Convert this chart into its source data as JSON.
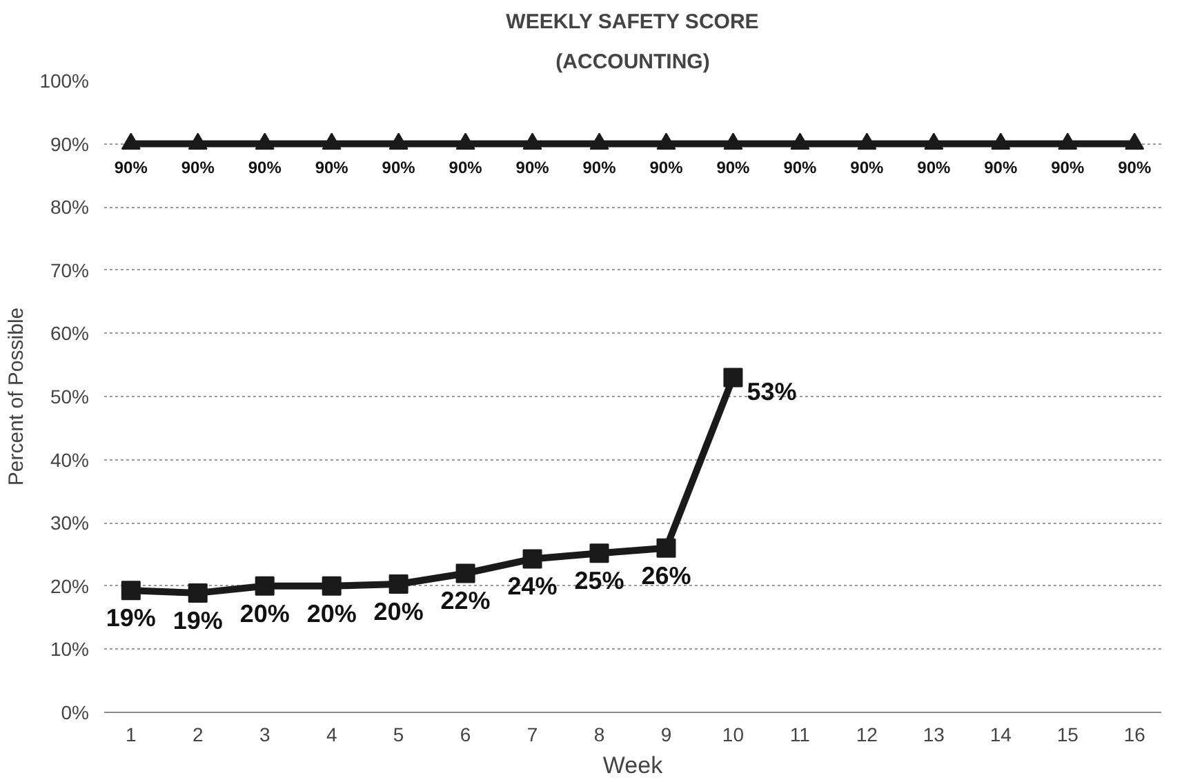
{
  "chart_data": {
    "type": "line",
    "title": "WEEKLY SAFETY SCORE",
    "subtitle": "(ACCOUNTING)",
    "xlabel": "Week",
    "ylabel": "Percent of Possible",
    "x": [
      1,
      2,
      3,
      4,
      5,
      6,
      7,
      8,
      9,
      10,
      11,
      12,
      13,
      14,
      15,
      16
    ],
    "series": [
      {
        "color": "#1a1a1a",
        "marker": "triangle",
        "values": [
          90,
          90,
          90,
          90,
          90,
          90,
          90,
          90,
          90,
          90,
          90,
          90,
          90,
          90,
          90,
          90
        ],
        "value_labels": [
          "90%",
          "90%",
          "90%",
          "90%",
          "90%",
          "90%",
          "90%",
          "90%",
          "90%",
          "90%",
          "90%",
          "90%",
          "90%",
          "90%",
          "90%",
          "90%"
        ]
      },
      {
        "color": "#1a1a1a",
        "marker": "square",
        "values": [
          19.3,
          18.9,
          20,
          20,
          20.3,
          22,
          24.3,
          25.2,
          26,
          53,
          null,
          null,
          null,
          null,
          null,
          null
        ],
        "value_labels": [
          "19%",
          "19%",
          "20%",
          "20%",
          "20%",
          "22%",
          "24%",
          "25%",
          "26%",
          "53%",
          null,
          null,
          null,
          null,
          null,
          null
        ]
      }
    ],
    "xlim": [
      0.6,
      16.4
    ],
    "xticks": [
      1,
      2,
      3,
      4,
      5,
      6,
      7,
      8,
      9,
      10,
      11,
      12,
      13,
      14,
      15,
      16
    ],
    "ylim": [
      0,
      100
    ],
    "yticks": [
      {
        "value": 0,
        "label": "0%"
      },
      {
        "value": 10,
        "label": "10%"
      },
      {
        "value": 20,
        "label": "20%"
      },
      {
        "value": 30,
        "label": "30%"
      },
      {
        "value": 40,
        "label": "40%"
      },
      {
        "value": 50,
        "label": "50%"
      },
      {
        "value": 60,
        "label": "60%"
      },
      {
        "value": 70,
        "label": "70%"
      },
      {
        "value": 80,
        "label": "80%"
      },
      {
        "value": 90,
        "label": "90%"
      },
      {
        "value": 100,
        "label": "100%"
      }
    ],
    "grid": "y",
    "line_style": "solid"
  }
}
